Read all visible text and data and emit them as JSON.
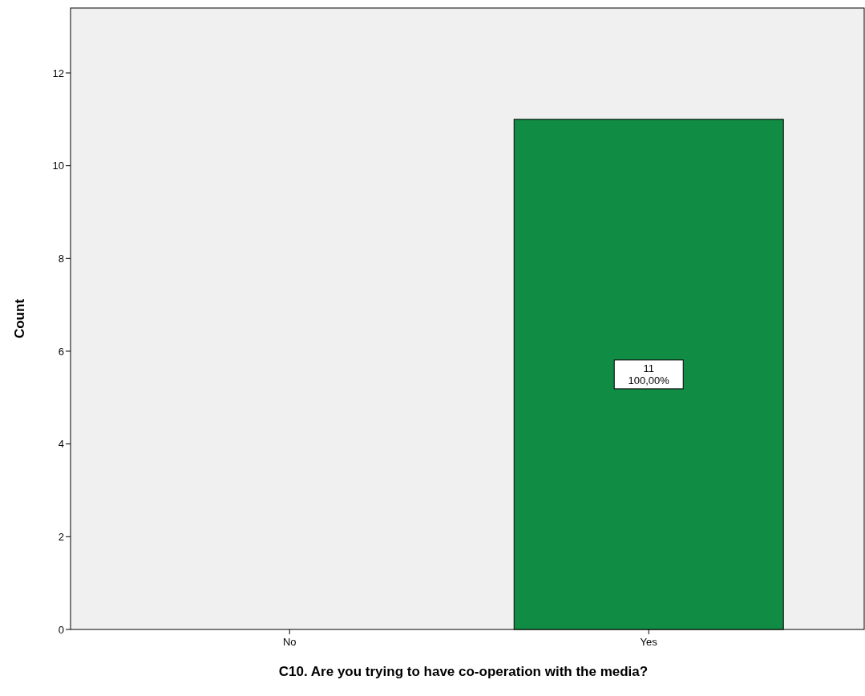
{
  "chart_data": {
    "type": "bar",
    "xlabel": "C10. Are you trying to have co-operation with the media?",
    "ylabel": "Count",
    "categories": [
      "No",
      "Yes"
    ],
    "values": [
      0,
      11
    ],
    "value_labels": [
      null,
      "11"
    ],
    "annotations": [
      "100,00%"
    ],
    "color": "#118c45",
    "ylim": [
      0,
      13.4
    ],
    "yticks": [
      0,
      2,
      4,
      6,
      8,
      10,
      12
    ],
    "grid": false
  }
}
